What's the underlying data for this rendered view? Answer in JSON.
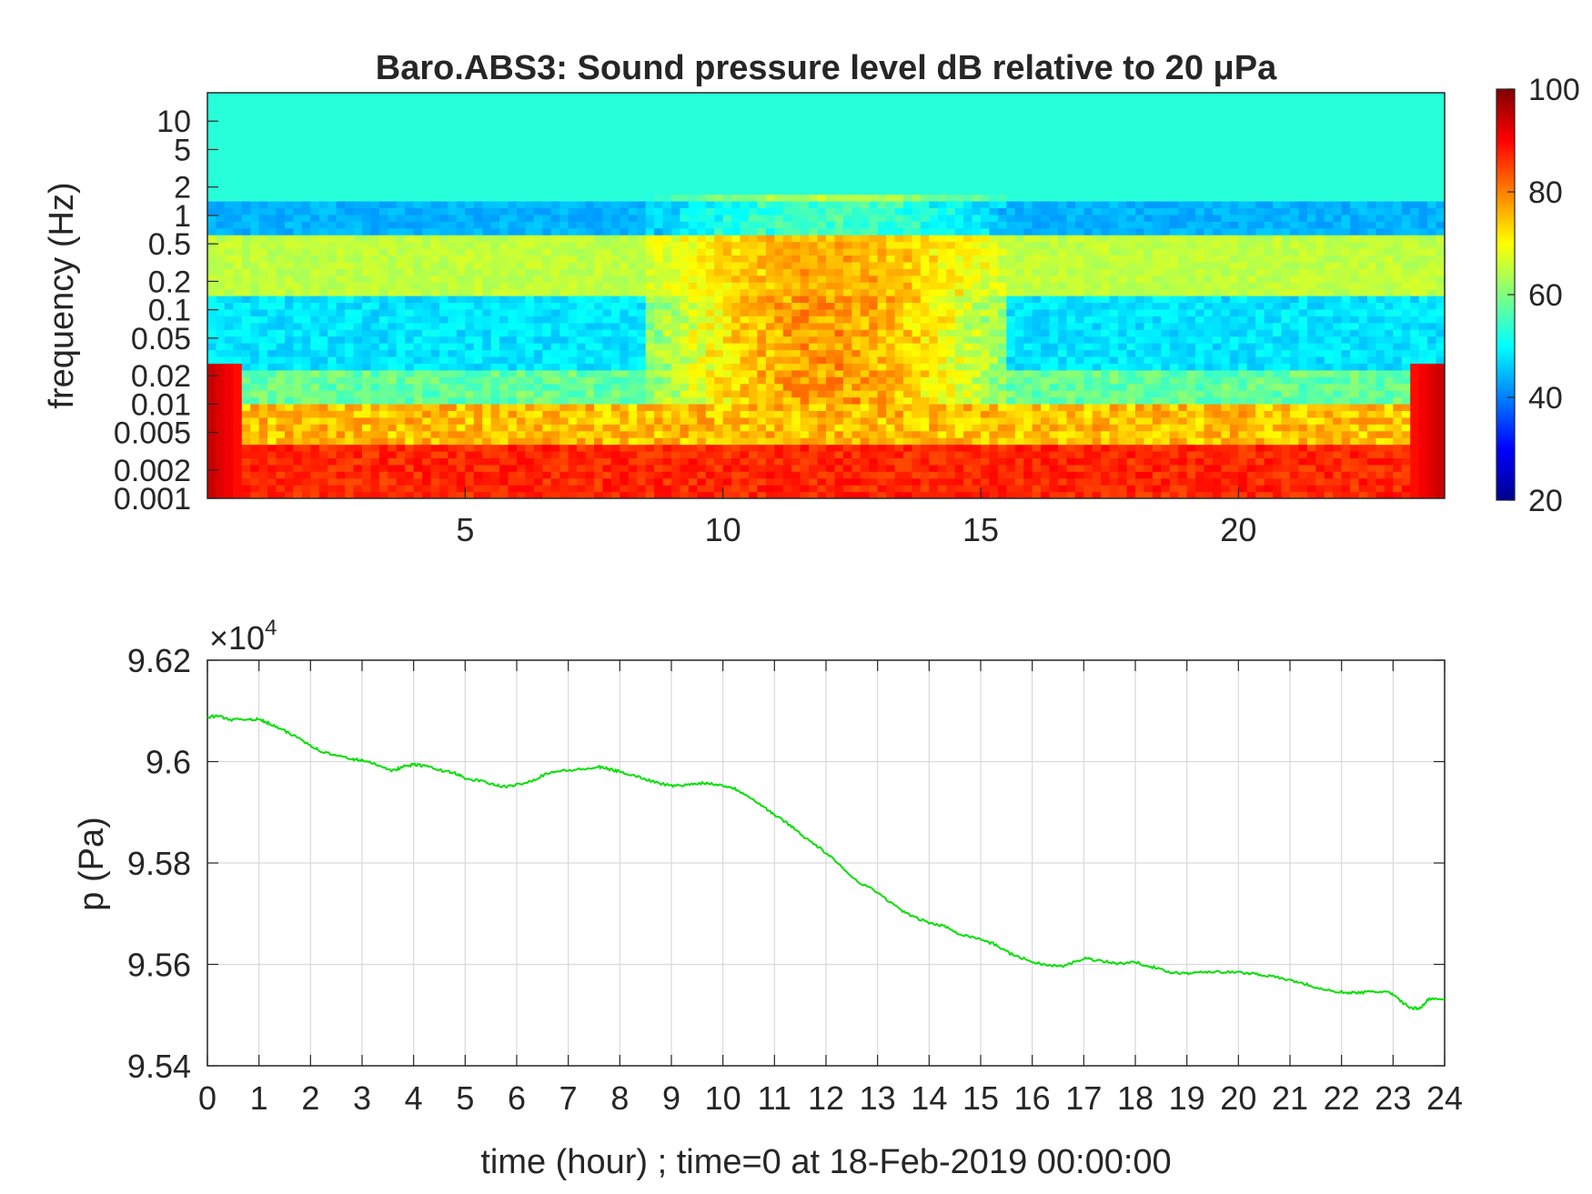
{
  "chart_data": [
    {
      "type": "heatmap",
      "title": "Baro.ABS3: Sound pressure level dB relative to 20 μPa",
      "ylabel": "frequency (Hz)",
      "xlabel": "",
      "y_scale": "log",
      "y_ticks": [
        "10",
        "5",
        "2",
        "1",
        "0.5",
        "0.2",
        "0.1",
        "0.05",
        "0.02",
        "0.01",
        "0.005",
        "0.002",
        "0.001"
      ],
      "y_tick_values": [
        10,
        5,
        2,
        1,
        0.5,
        0.2,
        0.1,
        0.05,
        0.02,
        0.01,
        0.005,
        0.002,
        0.001
      ],
      "ylim": [
        0.001,
        20
      ],
      "x_ticks": [
        "5",
        "10",
        "15",
        "20"
      ],
      "x_tick_values": [
        5,
        10,
        15,
        20
      ],
      "xlim": [
        0,
        24
      ],
      "colormap": "jet",
      "colorbar": {
        "ticks": [
          "20",
          "40",
          "60",
          "80",
          "100"
        ],
        "tick_values": [
          20,
          40,
          60,
          80,
          100
        ],
        "range": [
          20,
          100
        ]
      },
      "approx_levels_db": {
        "above_1_Hz_top_band": 53,
        "1_to_5_Hz_band": 44,
        "0.15_to_0.6_Hz_band": 65,
        "0.02_to_0.1_Hz_quiet_hours": 48,
        "0.02_to_0.2_Hz_hours_9_to_14": 78,
        "0.005_to_0.01_Hz": 75,
        "0.001_to_0.002_Hz": 87
      }
    },
    {
      "type": "line",
      "ylabel": "p (Pa)",
      "xlabel": "time (hour) ; time=0 at 18-Feb-2019 00:00:00",
      "y_multiplier_label": "×10",
      "y_multiplier_exponent": "4",
      "x_ticks": [
        "0",
        "1",
        "2",
        "3",
        "4",
        "5",
        "6",
        "7",
        "8",
        "9",
        "10",
        "11",
        "12",
        "13",
        "14",
        "15",
        "16",
        "17",
        "18",
        "19",
        "20",
        "21",
        "22",
        "23",
        "24"
      ],
      "y_ticks": [
        "9.62",
        "9.6",
        "9.58",
        "9.56",
        "9.54"
      ],
      "y_tick_values": [
        9.62,
        9.6,
        9.58,
        9.56,
        9.54
      ],
      "xlim": [
        0,
        24
      ],
      "ylim": [
        9.54,
        9.62
      ],
      "grid": true,
      "series": [
        {
          "color": "#00e000",
          "x": [
            0,
            0.2,
            0.5,
            0.8,
            1.0,
            1.2,
            1.5,
            1.8,
            2.0,
            2.2,
            2.5,
            2.8,
            3.0,
            3.3,
            3.6,
            3.8,
            4.0,
            4.2,
            4.5,
            4.8,
            5.0,
            5.3,
            5.6,
            5.8,
            6.0,
            6.3,
            6.6,
            7.0,
            7.3,
            7.6,
            7.8,
            8.0,
            8.3,
            8.6,
            9.0,
            9.3,
            9.6,
            9.9,
            10.2,
            10.5,
            10.8,
            11.0,
            11.3,
            11.6,
            12.0,
            12.3,
            12.6,
            13.0,
            13.3,
            13.6,
            14.0,
            14.3,
            14.6,
            15.0,
            15.3,
            15.6,
            16.0,
            16.3,
            16.6,
            17.0,
            17.3,
            17.6,
            18.0,
            18.3,
            18.6,
            19.0,
            19.3,
            19.6,
            20.0,
            20.3,
            20.6,
            21.0,
            21.3,
            21.6,
            22.0,
            22.3,
            22.6,
            22.9,
            23.1,
            23.3,
            23.5,
            23.7,
            24.0
          ],
          "y": [
            9.6088,
            9.609,
            9.6082,
            9.6084,
            9.6083,
            9.6075,
            9.606,
            9.6045,
            9.6032,
            9.602,
            9.6012,
            9.6005,
            9.6002,
            9.5994,
            9.5982,
            9.599,
            9.5994,
            9.5992,
            9.5983,
            9.5978,
            9.5966,
            9.5962,
            9.5953,
            9.595,
            9.5955,
            9.5962,
            9.5978,
            9.5983,
            9.5985,
            9.5989,
            9.5985,
            9.598,
            9.5972,
            9.5962,
            9.5952,
            9.5954,
            9.5958,
            9.5955,
            9.5948,
            9.5932,
            9.591,
            9.5895,
            9.5875,
            9.585,
            9.582,
            9.5792,
            9.5765,
            9.5742,
            9.5718,
            9.5698,
            9.5682,
            9.5675,
            9.566,
            9.565,
            9.5638,
            9.562,
            9.5605,
            9.5598,
            9.5596,
            9.5612,
            9.5608,
            9.5602,
            9.5604,
            9.5596,
            9.5586,
            9.5582,
            9.5586,
            9.5585,
            9.5584,
            9.5582,
            9.5577,
            9.5569,
            9.5561,
            9.5551,
            9.5545,
            9.5544,
            9.5546,
            9.5546,
            9.5532,
            9.5516,
            9.5512,
            9.5532,
            9.553
          ]
        }
      ]
    }
  ]
}
